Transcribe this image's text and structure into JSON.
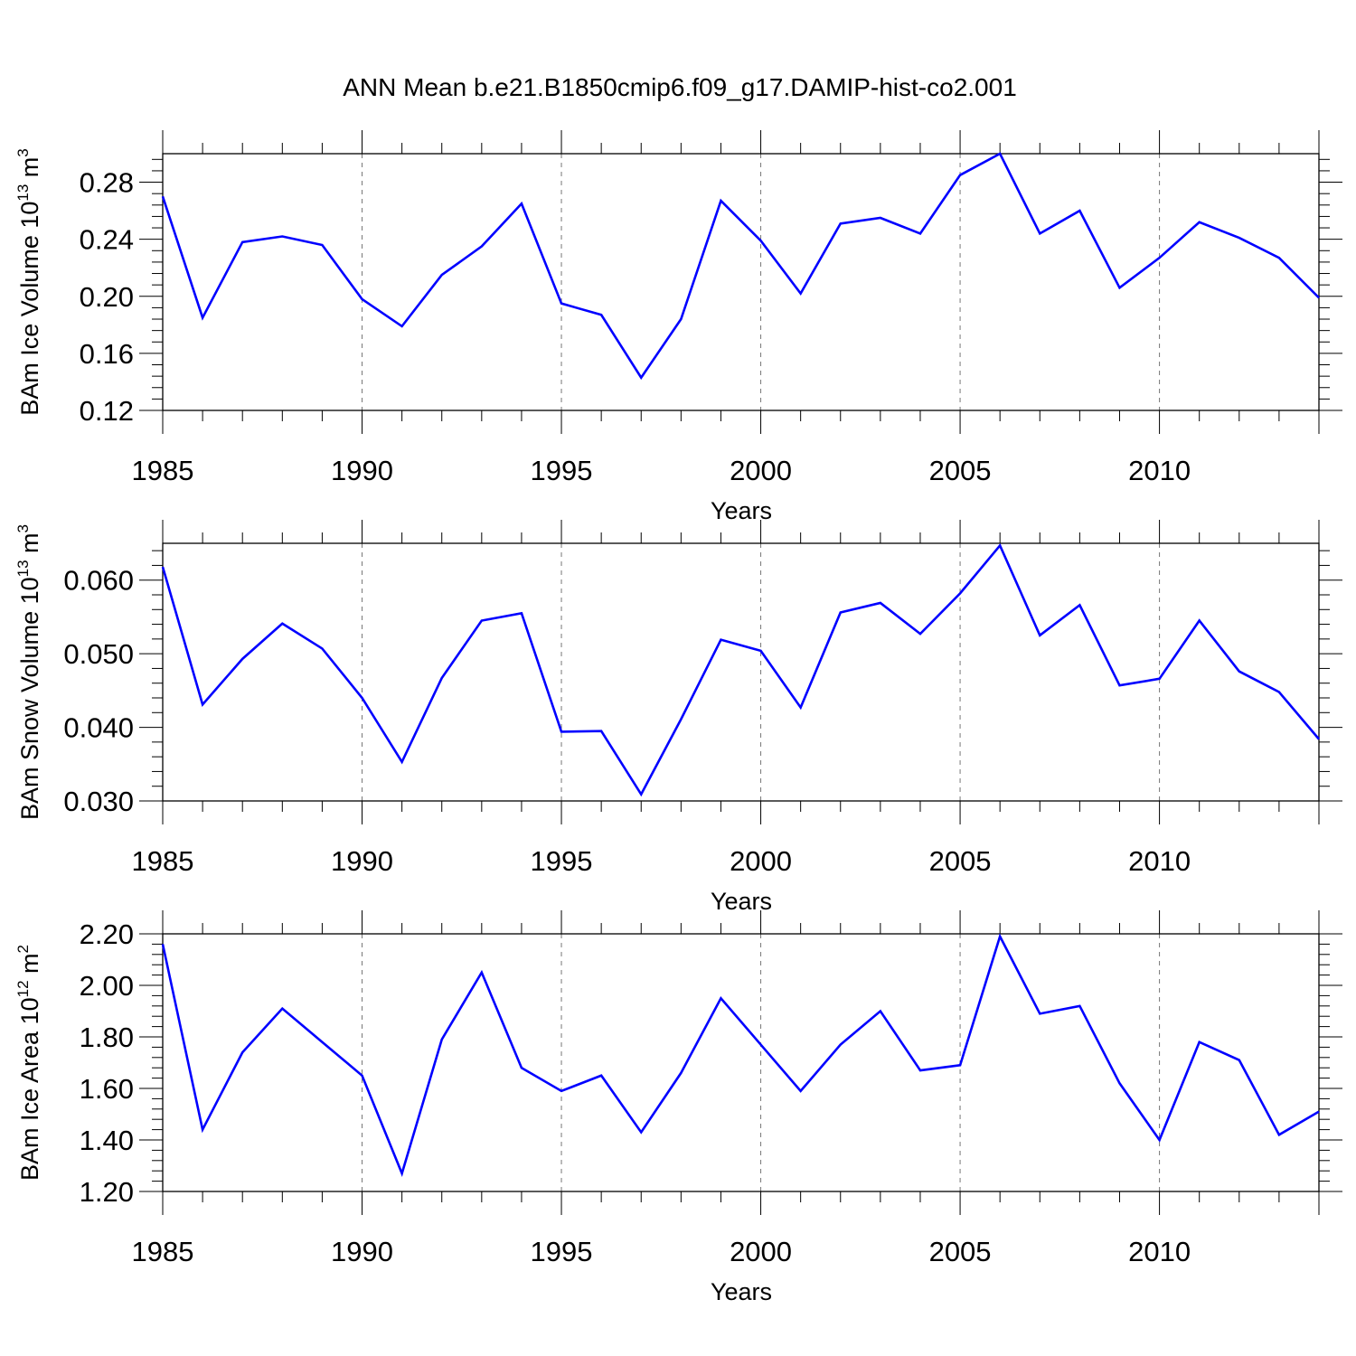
{
  "chart_data": {
    "title": "ANN Mean b.e21.B1850cmip6.f09_g17.DAMIP-hist-co2.001",
    "type": "line",
    "line_color": "#0000ff",
    "panels": [
      {
        "type": "line",
        "ylabel": "BAm Ice Volume 10",
        "ylabel_exp": "13",
        "ylabel_unit": " m",
        "ylabel_unit_exp": "3",
        "xlabel": "Years",
        "xlim": [
          1985,
          2014
        ],
        "ylim": [
          0.12,
          0.3
        ],
        "yticks": [
          0.12,
          0.16,
          0.2,
          0.24,
          0.28
        ],
        "ytick_labels": [
          "0.12",
          "0.16",
          "0.20",
          "0.24",
          "0.28"
        ],
        "xticks": [
          1985,
          1990,
          1995,
          2000,
          2005,
          2010
        ],
        "xtick_labels": [
          "1985",
          "1990",
          "1995",
          "2000",
          "2005",
          "2010"
        ],
        "x": [
          1985,
          1986,
          1987,
          1988,
          1989,
          1990,
          1991,
          1992,
          1993,
          1994,
          1995,
          1996,
          1997,
          1998,
          1999,
          2000,
          2001,
          2002,
          2003,
          2004,
          2005,
          2006,
          2007,
          2008,
          2009,
          2010,
          2011,
          2012,
          2013,
          2014
        ],
        "values": [
          0.27,
          0.185,
          0.238,
          0.242,
          0.236,
          0.198,
          0.179,
          0.215,
          0.235,
          0.265,
          0.195,
          0.187,
          0.143,
          0.184,
          0.267,
          0.239,
          0.202,
          0.251,
          0.255,
          0.244,
          0.285,
          0.3,
          0.244,
          0.26,
          0.206,
          0.227,
          0.252,
          0.241,
          0.227,
          0.199
        ]
      },
      {
        "type": "line",
        "ylabel": "BAm Snow Volume 10",
        "ylabel_exp": "13",
        "ylabel_unit": " m",
        "ylabel_unit_exp": "3",
        "xlabel": "Years",
        "xlim": [
          1985,
          2014
        ],
        "ylim": [
          0.03,
          0.065
        ],
        "yticks": [
          0.03,
          0.04,
          0.05,
          0.06
        ],
        "ytick_labels": [
          "0.030",
          "0.040",
          "0.050",
          "0.060"
        ],
        "xticks": [
          1985,
          1990,
          1995,
          2000,
          2005,
          2010
        ],
        "xtick_labels": [
          "1985",
          "1990",
          "1995",
          "2000",
          "2005",
          "2010"
        ],
        "x": [
          1985,
          1986,
          1987,
          1988,
          1989,
          1990,
          1991,
          1992,
          1993,
          1994,
          1995,
          1996,
          1997,
          1998,
          1999,
          2000,
          2001,
          2002,
          2003,
          2004,
          2005,
          2006,
          2007,
          2008,
          2009,
          2010,
          2011,
          2012,
          2013,
          2014
        ],
        "values": [
          0.0618,
          0.0431,
          0.0493,
          0.0541,
          0.0507,
          0.044,
          0.0353,
          0.0467,
          0.0545,
          0.0555,
          0.0394,
          0.0395,
          0.0309,
          0.0411,
          0.0519,
          0.0504,
          0.0427,
          0.0556,
          0.0569,
          0.0527,
          0.0582,
          0.0647,
          0.0525,
          0.0566,
          0.0457,
          0.0466,
          0.0545,
          0.0476,
          0.0448,
          0.0384
        ]
      },
      {
        "type": "line",
        "ylabel": "BAm Ice Area 10",
        "ylabel_exp": "12",
        "ylabel_unit": " m",
        "ylabel_unit_exp": "2",
        "xlabel": "Years",
        "xlim": [
          1985,
          2014
        ],
        "ylim": [
          1.2,
          2.2
        ],
        "yticks": [
          1.2,
          1.4,
          1.6,
          1.8,
          2.0,
          2.2
        ],
        "ytick_labels": [
          "1.20",
          "1.40",
          "1.60",
          "1.80",
          "2.00",
          "2.20"
        ],
        "xticks": [
          1985,
          1990,
          1995,
          2000,
          2005,
          2010
        ],
        "xtick_labels": [
          "1985",
          "1990",
          "1995",
          "2000",
          "2005",
          "2010"
        ],
        "x": [
          1985,
          1986,
          1987,
          1988,
          1989,
          1990,
          1991,
          1992,
          1993,
          1994,
          1995,
          1996,
          1997,
          1998,
          1999,
          2000,
          2001,
          2002,
          2003,
          2004,
          2005,
          2006,
          2007,
          2008,
          2009,
          2010,
          2011,
          2012,
          2013,
          2014
        ],
        "values": [
          2.16,
          1.44,
          1.74,
          1.91,
          1.78,
          1.65,
          1.27,
          1.79,
          2.05,
          1.68,
          1.59,
          1.65,
          1.43,
          1.66,
          1.95,
          1.77,
          1.59,
          1.77,
          1.9,
          1.67,
          1.69,
          2.19,
          1.89,
          1.92,
          1.62,
          1.4,
          1.78,
          1.71,
          1.42,
          1.51
        ]
      }
    ]
  }
}
